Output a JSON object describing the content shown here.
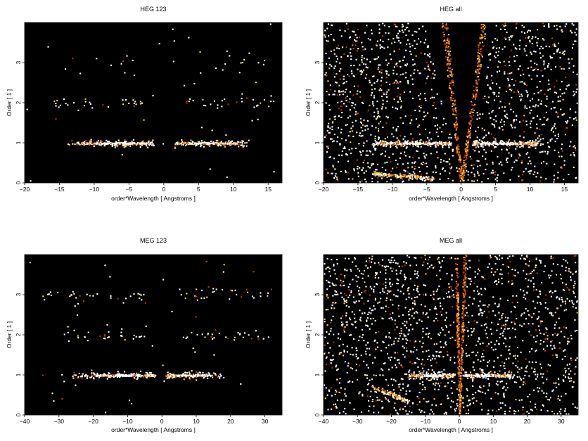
{
  "chart_data": [
    {
      "type": "heatmap",
      "title": "HEG 123",
      "xlabel": "order*Wavelength [ Angstroms ]",
      "ylabel": "Order [ 1 ]",
      "xlim": [
        -20,
        17
      ],
      "ylim": [
        0,
        4
      ],
      "xticks": [
        -20,
        -15,
        -10,
        -5,
        0,
        5,
        10,
        15
      ],
      "xtick_labels": [
        "−20",
        "−15",
        "−10",
        "−5",
        "0",
        "5",
        "10",
        "15"
      ],
      "yticks": [
        0,
        1,
        2,
        3
      ],
      "ytick_labels": [
        "0",
        "1",
        "2",
        "3"
      ],
      "background": "#000000",
      "colormap": [
        "#000000",
        "#5a0c00",
        "#b83a00",
        "#f08a00",
        "#ffd24a",
        "#ffffff"
      ],
      "bands": [
        {
          "order": 1,
          "x_range": [
            -14,
            -1.5
          ],
          "core": [
            -12,
            -2
          ],
          "core_peak": -6.5,
          "spread": 0.045,
          "density": 0.55
        },
        {
          "order": 1,
          "x_range": [
            1.5,
            12.5
          ],
          "core": [
            1.8,
            10.5
          ],
          "core_peak": 5.5,
          "spread": 0.045,
          "density": 0.5
        },
        {
          "order": 2,
          "x_range": [
            -16,
            -3
          ],
          "core": null,
          "spread": 0.06,
          "density": 0.12
        },
        {
          "order": 2,
          "x_range": [
            3,
            16
          ],
          "core": null,
          "spread": 0.06,
          "density": 0.12
        },
        {
          "order": 3,
          "x_range": [
            -15,
            -3
          ],
          "core": null,
          "spread": 0.12,
          "density": 0.04
        },
        {
          "order": 3,
          "x_range": [
            5,
            15
          ],
          "core": null,
          "spread": 0.12,
          "density": 0.04
        }
      ],
      "background_noise": 0.002,
      "wedges": false
    },
    {
      "type": "heatmap",
      "title": "HEG all",
      "xlabel": "order*Wavelength [ Angstroms ]",
      "ylabel": "Order [ 1 ]",
      "xlim": [
        -20,
        17
      ],
      "ylim": [
        0,
        4
      ],
      "xticks": [
        -20,
        -15,
        -10,
        -5,
        0,
        5,
        10,
        15
      ],
      "xtick_labels": [
        "−20",
        "−15",
        "−10",
        "−5",
        "0",
        "5",
        "10",
        "15"
      ],
      "yticks": [
        0,
        1,
        2,
        3
      ],
      "ytick_labels": [
        "0",
        "1",
        "2",
        "3"
      ],
      "background": "#000000",
      "colormap": [
        "#000000",
        "#5a0c00",
        "#b83a00",
        "#f08a00",
        "#ffd24a",
        "#ffffff"
      ],
      "bands": [
        {
          "order": 1,
          "x_range": [
            -13,
            -1.5
          ],
          "core": [
            -12.5,
            -1.5
          ],
          "core_peak": -6.5,
          "spread": 0.035,
          "density": 0.7
        },
        {
          "order": 1,
          "x_range": [
            1.5,
            11.5
          ],
          "core": [
            1.8,
            11
          ],
          "core_peak": 5.5,
          "spread": 0.035,
          "density": 0.65
        }
      ],
      "arcs": [
        {
          "x_range": [
            -13,
            -4
          ],
          "y_start": 0.25,
          "y_end": 0.12,
          "density": 0.6
        }
      ],
      "background_noise": 0.09,
      "wedges": true,
      "wedge_left_slope": -0.62,
      "wedge_right_slope": 0.55
    },
    {
      "type": "heatmap",
      "title": "MEG 123",
      "xlabel": "order*Wavelength [ Angstroms ]",
      "ylabel": "Order [ 1 ]",
      "xlim": [
        -40,
        35
      ],
      "ylim": [
        0,
        4
      ],
      "xticks": [
        -40,
        -30,
        -20,
        -10,
        0,
        10,
        20,
        30
      ],
      "xtick_labels": [
        "−40",
        "−30",
        "−20",
        "−10",
        "0",
        "10",
        "20",
        "30"
      ],
      "yticks": [
        0,
        1,
        2,
        3
      ],
      "ytick_labels": [
        "0",
        "1",
        "2",
        "3"
      ],
      "background": "#000000",
      "colormap": [
        "#000000",
        "#5a0c00",
        "#b83a00",
        "#f08a00",
        "#ffd24a",
        "#ffffff"
      ],
      "bands": [
        {
          "order": 1,
          "x_range": [
            -27,
            -2
          ],
          "core": [
            -20,
            -2
          ],
          "core_peak": -10,
          "spread": 0.05,
          "density": 0.5
        },
        {
          "order": 1,
          "x_range": [
            1,
            18
          ],
          "core": [
            1,
            14
          ],
          "core_peak": 7,
          "spread": 0.05,
          "density": 0.5
        },
        {
          "order": 2,
          "x_range": [
            -30,
            -5
          ],
          "core": null,
          "spread": 0.06,
          "density": 0.13
        },
        {
          "order": 2,
          "x_range": [
            5,
            30
          ],
          "core": null,
          "spread": 0.06,
          "density": 0.13
        },
        {
          "order": 3,
          "x_range": [
            -35,
            -5
          ],
          "core": null,
          "spread": 0.09,
          "density": 0.12
        },
        {
          "order": 3,
          "x_range": [
            5,
            33
          ],
          "core": null,
          "spread": 0.09,
          "density": 0.12
        }
      ],
      "background_noise": 0.002,
      "wedges": false
    },
    {
      "type": "heatmap",
      "title": "MEG all",
      "xlabel": "order*Wavelength [ Angstroms ]",
      "ylabel": "Order [ 1 ]",
      "xlim": [
        -40,
        35
      ],
      "ylim": [
        0,
        4
      ],
      "xticks": [
        -40,
        -30,
        -20,
        -10,
        0,
        10,
        20,
        30
      ],
      "xtick_labels": [
        "−40",
        "−30",
        "−20",
        "−10",
        "0",
        "10",
        "20",
        "30"
      ],
      "yticks": [
        0,
        1,
        2,
        3
      ],
      "ytick_labels": [
        "0",
        "1",
        "2",
        "3"
      ],
      "background": "#000000",
      "colormap": [
        "#000000",
        "#5a0c00",
        "#b83a00",
        "#f08a00",
        "#ffd24a",
        "#ffffff"
      ],
      "bands": [
        {
          "order": 1,
          "x_range": [
            -15,
            -1.5
          ],
          "core": [
            -15,
            -2
          ],
          "core_peak": -8,
          "spread": 0.04,
          "density": 0.7
        },
        {
          "order": 1,
          "x_range": [
            1.5,
            16
          ],
          "core": [
            1.5,
            15
          ],
          "core_peak": 7,
          "spread": 0.04,
          "density": 0.65
        }
      ],
      "arcs": [
        {
          "x_range": [
            -26,
            -15
          ],
          "y_start": 0.7,
          "y_end": 0.35,
          "density": 0.55
        }
      ],
      "background_noise": 0.09,
      "wedges": true,
      "wedge_left_slope": -0.27,
      "wedge_right_slope": 0.26
    }
  ]
}
